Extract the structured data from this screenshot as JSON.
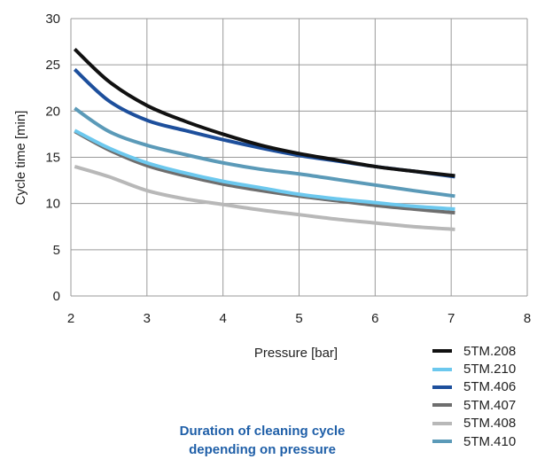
{
  "chart_data": {
    "type": "line",
    "xlabel": "Pressure [bar]",
    "ylabel": "Cycle time [min]",
    "xlim": [
      2,
      8
    ],
    "ylim": [
      0,
      30
    ],
    "xticks": [
      "2",
      "3",
      "4",
      "5",
      "6",
      "7",
      "8"
    ],
    "yticks": [
      "0",
      "5",
      "10",
      "15",
      "20",
      "25",
      "30"
    ],
    "grid": true,
    "legend_position": "bottom-right",
    "caption": [
      "Duration of cleaning cycle",
      "depending on pressure"
    ],
    "x": [
      2.05,
      2.5,
      3,
      3.5,
      4,
      4.5,
      5,
      5.5,
      6,
      6.5,
      7.05
    ],
    "series": [
      {
        "name": "5TM.208",
        "color": "#111111",
        "values": [
          26.7,
          23.2,
          20.6,
          18.9,
          17.5,
          16.3,
          15.4,
          14.7,
          14.0,
          13.5,
          13.0
        ]
      },
      {
        "name": "5TM.210",
        "color": "#6cc8ee",
        "values": [
          17.9,
          16.0,
          14.4,
          13.3,
          12.4,
          11.7,
          11.0,
          10.5,
          10.1,
          9.7,
          9.4
        ]
      },
      {
        "name": "5TM.406",
        "color": "#1d4f9c",
        "values": [
          24.5,
          21.1,
          19.0,
          17.9,
          16.9,
          16.0,
          15.2,
          14.6,
          14.0,
          13.5,
          12.9
        ]
      },
      {
        "name": "5TM.407",
        "color": "#6e6e6e",
        "values": [
          17.8,
          15.8,
          14.1,
          13.0,
          12.1,
          11.4,
          10.8,
          10.3,
          9.8,
          9.4,
          9.0
        ]
      },
      {
        "name": "5TM.408",
        "color": "#b8b8b8",
        "values": [
          14.0,
          12.9,
          11.4,
          10.5,
          9.9,
          9.3,
          8.8,
          8.3,
          7.9,
          7.5,
          7.2
        ]
      },
      {
        "name": "5TM.410",
        "color": "#5b9ab8",
        "values": [
          20.3,
          17.8,
          16.3,
          15.3,
          14.4,
          13.7,
          13.2,
          12.6,
          12.0,
          11.4,
          10.8
        ]
      }
    ]
  }
}
